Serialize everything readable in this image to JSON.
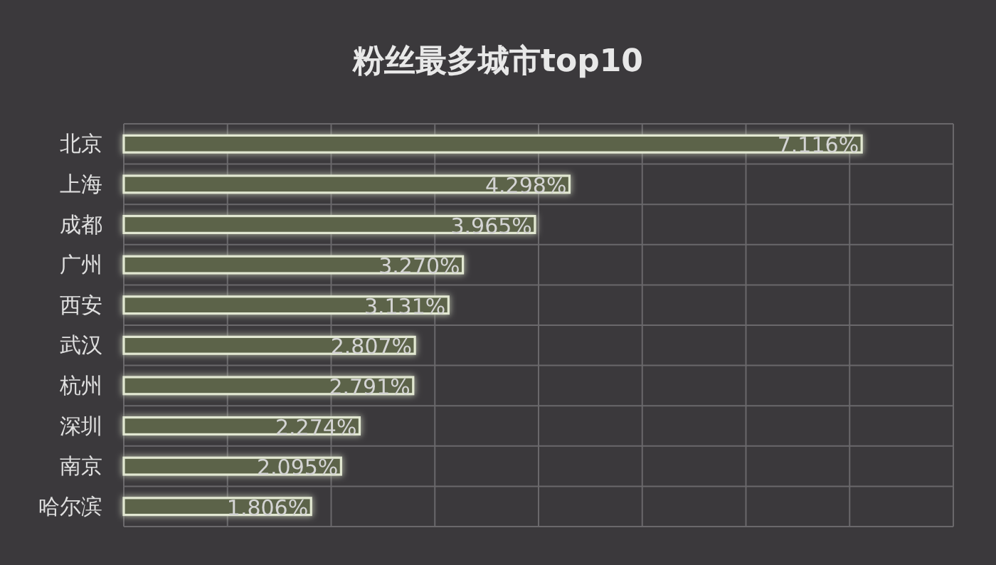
{
  "chart_data": {
    "type": "bar",
    "orientation": "horizontal",
    "title": "粉丝最多城市top10",
    "categories": [
      "北京",
      "上海",
      "成都",
      "广州",
      "西安",
      "武汉",
      "杭州",
      "深圳",
      "南京",
      "哈尔滨"
    ],
    "values": [
      7.116,
      4.298,
      3.965,
      3.27,
      3.131,
      2.807,
      2.791,
      2.274,
      2.095,
      1.806
    ],
    "value_labels": [
      "7.116%",
      "4.298%",
      "3.965%",
      "3.270%",
      "3.131%",
      "2.807%",
      "2.791%",
      "2.274%",
      "2.095%",
      "1.806%"
    ],
    "color": "#5c6449",
    "xlim": [
      0,
      8
    ],
    "xticks": [
      {
        "value": 0,
        "label": null
      },
      {
        "value": 1,
        "label": null
      },
      {
        "value": 2,
        "label": null
      },
      {
        "value": 3,
        "label": null
      },
      {
        "value": 4,
        "label": null
      },
      {
        "value": 5,
        "label": null
      },
      {
        "value": 6,
        "label": null
      },
      {
        "value": 7,
        "label": null
      },
      {
        "value": 8,
        "label": null
      }
    ],
    "tick_labels": "y",
    "grid": true
  }
}
